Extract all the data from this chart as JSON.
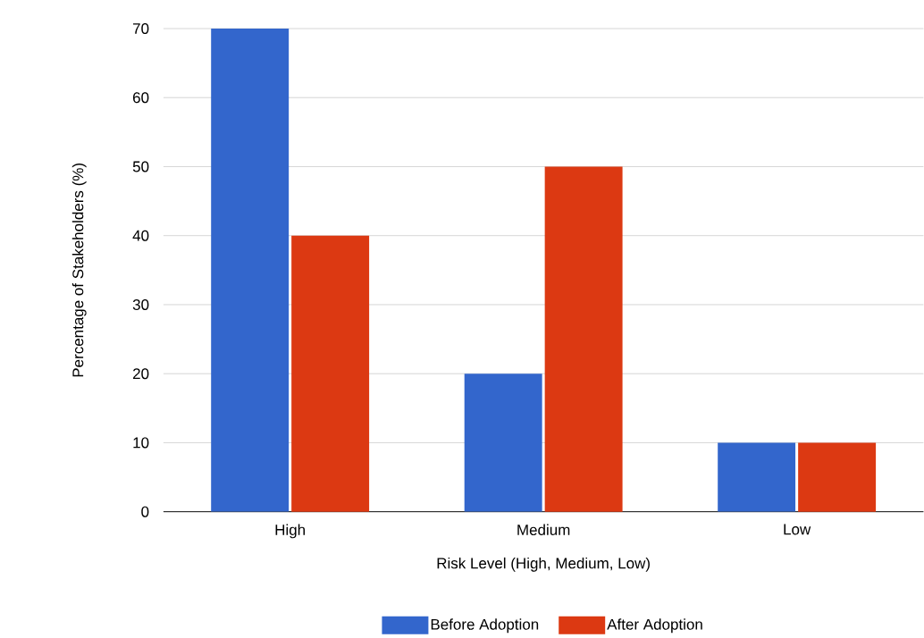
{
  "chart_data": {
    "type": "bar",
    "categories": [
      "High",
      "Medium",
      "Low"
    ],
    "series": [
      {
        "name": "Before Adoption",
        "color": "#3366cc",
        "values": [
          70,
          20,
          10
        ]
      },
      {
        "name": "After Adoption",
        "color": "#dc3912",
        "values": [
          40,
          50,
          10
        ]
      }
    ],
    "xlabel": "Risk Level (High, Medium, Low)",
    "ylabel": "Percentage of Stakeholders (%)",
    "ylim": [
      0,
      70
    ],
    "yticks": [
      0,
      10,
      20,
      30,
      40,
      50,
      60,
      70
    ],
    "grid": "y",
    "legend": "bottom"
  }
}
